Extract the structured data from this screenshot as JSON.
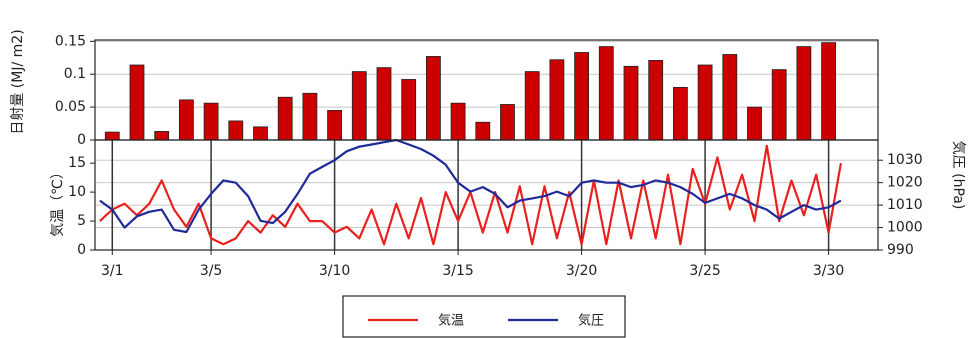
{
  "chart_data": [
    {
      "type": "bar",
      "y_label": "日射量 (MJ/ m2)",
      "x": [
        1,
        2,
        3,
        4,
        5,
        6,
        7,
        8,
        9,
        10,
        11,
        12,
        13,
        14,
        15,
        16,
        17,
        18,
        19,
        20,
        21,
        22,
        23,
        24,
        25,
        26,
        27,
        28,
        29,
        30
      ],
      "values": [
        0.012,
        0.114,
        0.013,
        0.061,
        0.056,
        0.029,
        0.02,
        0.065,
        0.071,
        0.045,
        0.104,
        0.11,
        0.092,
        0.127,
        0.056,
        0.027,
        0.054,
        0.104,
        0.122,
        0.133,
        0.142,
        0.112,
        0.121,
        0.08,
        0.114,
        0.13,
        0.05,
        0.107,
        0.142,
        0.148
      ],
      "color": "#cc0000",
      "xlim": [
        0.3,
        32
      ],
      "ylim": [
        0,
        0.152
      ],
      "yticks": [
        0,
        0.05,
        0.1,
        0.15
      ],
      "grid": true
    },
    {
      "type": "line",
      "y_label": "気温（℃）",
      "y2_label": "気圧 (hPa)",
      "x": [
        0.5,
        1,
        1.5,
        2,
        2.5,
        3,
        3.5,
        4,
        4.5,
        5,
        5.5,
        6,
        6.5,
        7,
        7.5,
        8,
        8.5,
        9,
        9.5,
        10,
        10.5,
        11,
        11.5,
        12,
        12.5,
        13,
        13.5,
        14,
        14.5,
        15,
        15.5,
        16,
        16.5,
        17,
        17.5,
        18,
        18.5,
        19,
        19.5,
        20,
        20.5,
        21,
        21.5,
        22,
        22.5,
        23,
        23.5,
        24,
        24.5,
        25,
        25.5,
        26,
        26.5,
        27,
        27.5,
        28,
        28.5,
        29,
        29.5,
        30,
        30.5
      ],
      "series": [
        {
          "name": "気温",
          "color": "#e8211e",
          "values": [
            5,
            7,
            8,
            6,
            8,
            12,
            7,
            4,
            8,
            2,
            1,
            2,
            5,
            3,
            6,
            4,
            8,
            5,
            5,
            3,
            4,
            2,
            7,
            1,
            8,
            2,
            9,
            1,
            10,
            5,
            10,
            3,
            10,
            3,
            11,
            1,
            11,
            2,
            10,
            1,
            12,
            1,
            12,
            2,
            12,
            2,
            13,
            1,
            14,
            8,
            16,
            7,
            13,
            5,
            18,
            5,
            12,
            6,
            13,
            3,
            15
          ]
        },
        {
          "name": "気圧",
          "color": "#1f2a9a",
          "axis": "y2",
          "values": [
            1012,
            1008,
            1000,
            1005,
            1007,
            1008,
            999,
            998,
            1008,
            1015,
            1021,
            1020,
            1014,
            1003,
            1002,
            1007,
            1015,
            1024,
            1027,
            1030,
            1034,
            1036,
            1037,
            1038,
            1039,
            1037,
            1035,
            1032,
            1028,
            1020,
            1016,
            1018,
            1015,
            1009,
            1012,
            1013,
            1014,
            1016,
            1014,
            1020,
            1021,
            1020,
            1020,
            1018,
            1019,
            1021,
            1020,
            1018,
            1015,
            1011,
            1013,
            1015,
            1013,
            1010,
            1008,
            1004,
            1007,
            1010,
            1008,
            1009,
            1012
          ]
        }
      ],
      "xlim": [
        0.3,
        32
      ],
      "xticks": [
        {
          "value": 1,
          "label": "3/1"
        },
        {
          "value": 5,
          "label": "3/5"
        },
        {
          "value": 10,
          "label": "3/10"
        },
        {
          "value": 15,
          "label": "3/15"
        },
        {
          "value": 20,
          "label": "3/20"
        },
        {
          "value": 25,
          "label": "3/25"
        },
        {
          "value": 30,
          "label": "3/30"
        }
      ],
      "ylim": [
        0,
        19
      ],
      "yticks": [
        0,
        5,
        10,
        15
      ],
      "y2lim": [
        990,
        1039
      ],
      "y2ticks": [
        990,
        1000,
        1010,
        1020,
        1030
      ],
      "grid": true,
      "legend": "bottom"
    }
  ]
}
